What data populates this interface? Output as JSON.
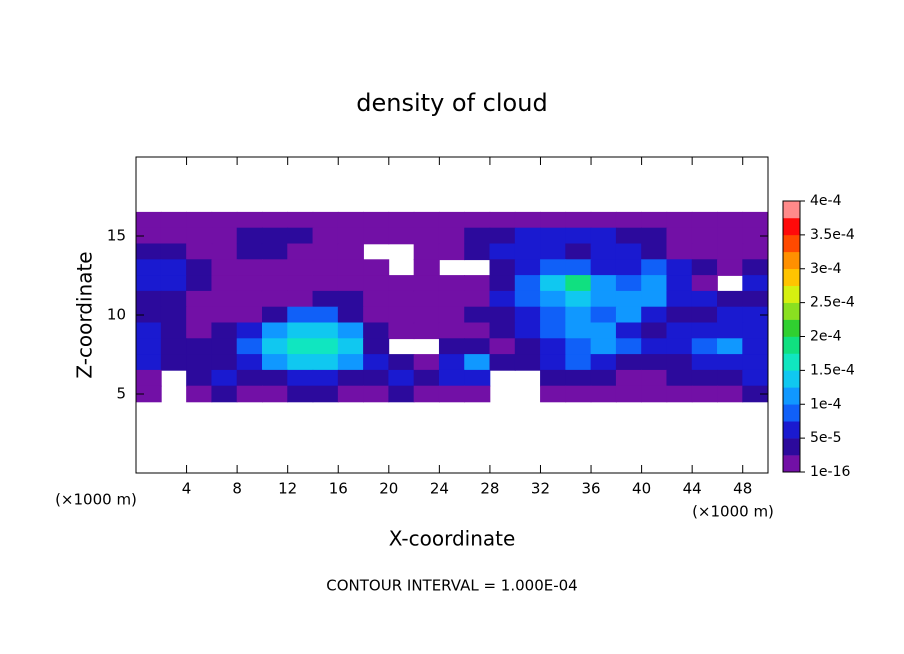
{
  "chart_data": {
    "type": "contour",
    "title": "density of cloud",
    "xlabel": "X-coordinate",
    "ylabel": "Z-coordinate",
    "x_unit": "(×1000 m)",
    "y_unit": "(×1000 m)",
    "footer": "CONTOUR INTERVAL = 1.000E-04",
    "xlim": [
      0,
      50
    ],
    "ylim": [
      0,
      20
    ],
    "xticks": [
      4,
      8,
      12,
      16,
      20,
      24,
      28,
      32,
      36,
      40,
      44,
      48
    ],
    "yticks": [
      5,
      10,
      15
    ],
    "x": [
      1,
      3,
      5,
      7,
      9,
      11,
      13,
      15,
      17,
      19,
      21,
      23,
      25,
      27,
      29,
      31,
      33,
      35,
      37,
      39,
      41,
      43,
      45,
      47,
      49
    ],
    "z": [
      16,
      15,
      14,
      13,
      12,
      11,
      10,
      9,
      8,
      7,
      6,
      5
    ],
    "values": [
      [
        1e-05,
        1e-05,
        1e-05,
        1e-05,
        1e-05,
        1e-05,
        1e-05,
        1e-05,
        1e-05,
        1e-05,
        1e-05,
        1e-05,
        1e-05,
        1e-05,
        1e-05,
        1e-05,
        1e-05,
        1e-05,
        1e-05,
        1e-05,
        1e-05,
        1e-05,
        1e-05,
        1e-05,
        1e-05
      ],
      [
        1e-05,
        1e-05,
        1e-05,
        1e-05,
        4e-05,
        4e-05,
        4e-05,
        1e-05,
        1e-05,
        1e-05,
        1e-05,
        1e-05,
        1e-05,
        4e-05,
        4e-05,
        6e-05,
        6e-05,
        6e-05,
        6e-05,
        4e-05,
        4e-05,
        1e-05,
        1e-05,
        1e-05,
        1e-05
      ],
      [
        4e-05,
        4e-05,
        1e-05,
        1e-05,
        4e-05,
        4e-05,
        1e-05,
        1e-05,
        1e-05,
        null,
        null,
        1e-05,
        1e-05,
        4e-05,
        6e-05,
        6e-05,
        6e-05,
        4e-05,
        6e-05,
        6e-05,
        4e-05,
        1e-05,
        1e-05,
        1e-05,
        1e-05
      ],
      [
        6e-05,
        6e-05,
        4e-05,
        1e-05,
        1e-05,
        1e-05,
        1e-05,
        1e-05,
        1e-05,
        1e-05,
        null,
        1e-05,
        null,
        null,
        4e-05,
        6e-05,
        9e-05,
        9e-05,
        6e-05,
        6e-05,
        9e-05,
        6e-05,
        4e-05,
        1e-05,
        4e-05
      ],
      [
        6e-05,
        6e-05,
        4e-05,
        1e-05,
        1e-05,
        1e-05,
        1e-05,
        1e-05,
        1e-05,
        1e-05,
        1e-05,
        1e-05,
        1e-05,
        1e-05,
        4e-05,
        9e-05,
        0.00014,
        0.00018,
        0.00011,
        9e-05,
        0.00011,
        6e-05,
        1e-05,
        null,
        6e-05
      ],
      [
        4e-05,
        4e-05,
        1e-05,
        1e-05,
        1e-05,
        1e-05,
        1e-05,
        4e-05,
        4e-05,
        1e-05,
        1e-05,
        1e-05,
        1e-05,
        1e-05,
        6e-05,
        9e-05,
        0.00011,
        0.00014,
        0.00011,
        0.00011,
        0.00011,
        6e-05,
        6e-05,
        4e-05,
        4e-05
      ],
      [
        4e-05,
        4e-05,
        1e-05,
        1e-05,
        1e-05,
        4e-05,
        9e-05,
        9e-05,
        4e-05,
        1e-05,
        1e-05,
        1e-05,
        1e-05,
        4e-05,
        4e-05,
        6e-05,
        9e-05,
        0.00011,
        9e-05,
        0.00011,
        6e-05,
        4e-05,
        4e-05,
        6e-05,
        6e-05
      ],
      [
        6e-05,
        4e-05,
        1e-05,
        4e-05,
        6e-05,
        0.00011,
        0.00014,
        0.00014,
        0.00011,
        4e-05,
        1e-05,
        1e-05,
        1e-05,
        1e-05,
        4e-05,
        6e-05,
        9e-05,
        0.00011,
        0.00011,
        6e-05,
        4e-05,
        6e-05,
        6e-05,
        6e-05,
        6e-05
      ],
      [
        6e-05,
        4e-05,
        4e-05,
        4e-05,
        9e-05,
        0.00014,
        0.00016,
        0.00016,
        0.00014,
        4e-05,
        null,
        null,
        4e-05,
        4e-05,
        1e-05,
        4e-05,
        6e-05,
        9e-05,
        0.00011,
        9e-05,
        6e-05,
        6e-05,
        9e-05,
        0.00011,
        6e-05
      ],
      [
        6e-05,
        4e-05,
        4e-05,
        4e-05,
        6e-05,
        0.00011,
        0.00014,
        0.00014,
        0.00011,
        6e-05,
        4e-05,
        1e-05,
        6e-05,
        0.00011,
        4e-05,
        4e-05,
        6e-05,
        9e-05,
        6e-05,
        4e-05,
        4e-05,
        4e-05,
        6e-05,
        6e-05,
        6e-05
      ],
      [
        1e-05,
        null,
        4e-05,
        6e-05,
        4e-05,
        4e-05,
        6e-05,
        6e-05,
        4e-05,
        4e-05,
        6e-05,
        4e-05,
        6e-05,
        6e-05,
        null,
        null,
        4e-05,
        4e-05,
        4e-05,
        1e-05,
        1e-05,
        4e-05,
        4e-05,
        4e-05,
        6e-05
      ],
      [
        1e-05,
        null,
        1e-05,
        4e-05,
        1e-05,
        1e-05,
        4e-05,
        4e-05,
        1e-05,
        1e-05,
        4e-05,
        1e-05,
        1e-05,
        1e-05,
        null,
        null,
        1e-05,
        1e-05,
        1e-05,
        1e-05,
        1e-05,
        1e-05,
        1e-05,
        1e-05,
        4e-05
      ]
    ],
    "colors": [
      "#7210a6",
      "#2c0a9c",
      "#1a1ad0",
      "#1060f8",
      "#1098ff",
      "#10c8f0",
      "#10e6c0",
      "#10e080",
      "#30d030",
      "#8ae020",
      "#d6f010",
      "#ffc400",
      "#ff9000",
      "#ff4a00",
      "#ff0a0a",
      "#ff8a8a"
    ],
    "colorbar_ticks": [
      {
        "value": 1e-16,
        "label": "1e-16"
      },
      {
        "value": 5e-05,
        "label": "5e-5"
      },
      {
        "value": 0.0001,
        "label": "1e-4"
      },
      {
        "value": 0.00015,
        "label": "1.5e-4"
      },
      {
        "value": 0.0002,
        "label": "2e-4"
      },
      {
        "value": 0.00025,
        "label": "2.5e-4"
      },
      {
        "value": 0.0003,
        "label": "3e-4"
      },
      {
        "value": 0.00035,
        "label": "3.5e-4"
      },
      {
        "value": 0.0004,
        "label": "4e-4"
      }
    ]
  }
}
